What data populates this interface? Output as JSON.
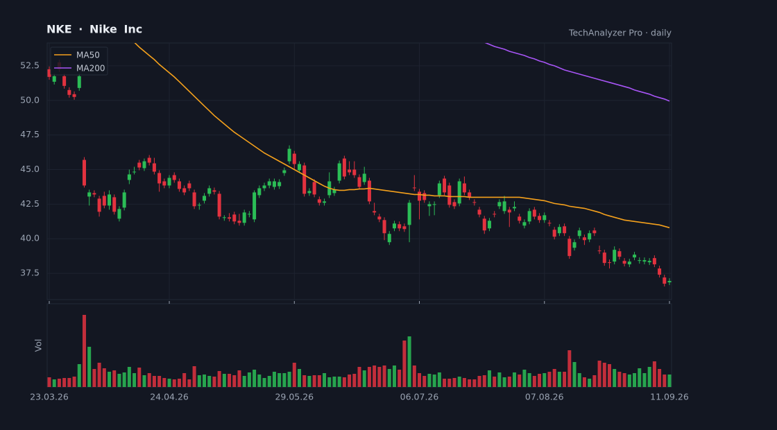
{
  "chart_data": {
    "type": "candlestick",
    "title": "NKE · Nike Inc",
    "subtitle": "TechAnalyzer Pro · daily",
    "volume_label": "Vol",
    "legend": "upper left",
    "grid": true,
    "up_color": "#2bbd56",
    "down_color": "#e2323f",
    "categories": [
      "23.03.26",
      null,
      null,
      null,
      null,
      null,
      null,
      null,
      null,
      null,
      null,
      null,
      null,
      null,
      null,
      null,
      null,
      null,
      null,
      null,
      null,
      null,
      null,
      null,
      "24.04.26",
      null,
      null,
      null,
      null,
      null,
      null,
      null,
      null,
      null,
      null,
      null,
      null,
      null,
      null,
      null,
      null,
      null,
      null,
      null,
      null,
      null,
      null,
      null,
      null,
      "29.05.26",
      null,
      null,
      null,
      null,
      null,
      null,
      null,
      null,
      null,
      null,
      null,
      null,
      null,
      null,
      null,
      null,
      null,
      null,
      null,
      null,
      null,
      null,
      null,
      null,
      "06.07.26",
      null,
      null,
      null,
      null,
      null,
      null,
      null,
      null,
      null,
      null,
      null,
      null,
      null,
      null,
      null,
      null,
      null,
      null,
      null,
      null,
      null,
      null,
      null,
      null,
      "07.08.26",
      null,
      null,
      null,
      null,
      null,
      null,
      null,
      null,
      null,
      null,
      null,
      null,
      null,
      null,
      null,
      null,
      null,
      null,
      null,
      null,
      null,
      null,
      null,
      null,
      "11.09.26"
    ],
    "open": [
      52.25,
      51.35,
      52.75,
      51.75,
      50.75,
      50.45,
      50.9,
      45.7,
      43.05,
      43.3,
      42.9,
      43.1,
      42.4,
      43.0,
      41.45,
      42.25,
      44.25,
      44.8,
      45.5,
      45.1,
      45.85,
      45.45,
      44.75,
      44.15,
      43.85,
      44.6,
      44.15,
      43.65,
      44.0,
      43.35,
      42.4,
      42.75,
      43.25,
      43.5,
      43.25,
      41.5,
      41.55,
      41.75,
      41.3,
      41.15,
      41.75,
      41.4,
      43.15,
      43.65,
      43.85,
      43.75,
      43.8,
      44.75,
      45.6,
      46.15,
      44.95,
      45.3,
      43.3,
      44.1,
      42.85,
      42.6,
      43.15,
      43.3,
      44.2,
      45.8,
      45.0,
      45.0,
      44.45,
      44.1,
      44.2,
      42.0,
      41.6,
      41.35,
      39.75,
      40.75,
      41.05,
      40.9,
      41.0,
      43.7,
      43.4,
      43.3,
      42.35,
      42.45,
      43.15,
      44.35,
      43.85,
      42.65,
      42.55,
      44.0,
      43.35,
      42.65,
      42.1,
      41.45,
      40.75,
      41.8,
      42.35,
      42.0,
      42.1,
      42.2,
      41.6,
      40.95,
      41.25,
      42.1,
      41.65,
      41.35,
      41.15,
      40.65,
      40.4,
      40.9,
      40.0,
      39.35,
      40.2,
      40.1,
      39.95,
      40.6,
      39.15,
      39.0,
      38.3,
      38.35,
      39.1,
      38.4,
      38.15,
      38.65,
      38.4,
      38.35,
      38.3,
      38.6,
      37.85,
      37.2,
      36.85
    ],
    "high": [
      52.45,
      51.95,
      52.95,
      51.95,
      50.95,
      50.65,
      51.95,
      45.9,
      43.55,
      43.5,
      43.1,
      43.4,
      43.5,
      43.2,
      42.35,
      43.55,
      45.0,
      45.2,
      45.7,
      45.8,
      46.05,
      45.85,
      44.95,
      44.35,
      44.6,
      44.8,
      44.35,
      43.85,
      44.2,
      43.55,
      42.6,
      43.3,
      43.85,
      43.7,
      43.45,
      41.7,
      41.85,
      41.95,
      41.8,
      42.1,
      42.0,
      43.5,
      43.85,
      44.05,
      44.35,
      44.35,
      44.3,
      45.15,
      46.75,
      46.35,
      45.6,
      45.5,
      43.65,
      44.3,
      43.05,
      42.9,
      44.8,
      43.75,
      45.65,
      46.0,
      45.6,
      45.6,
      44.65,
      45.2,
      44.4,
      42.6,
      41.8,
      41.55,
      40.55,
      41.3,
      41.25,
      41.1,
      42.8,
      44.6,
      43.6,
      43.5,
      42.7,
      42.7,
      44.2,
      44.55,
      44.05,
      42.85,
      44.35,
      44.5,
      43.55,
      42.85,
      42.3,
      41.65,
      41.5,
      42.0,
      42.85,
      43.1,
      42.3,
      42.7,
      41.8,
      41.4,
      42.2,
      42.3,
      41.85,
      41.9,
      41.35,
      40.85,
      41.05,
      41.1,
      40.2,
      39.95,
      40.8,
      40.3,
      40.6,
      40.8,
      39.5,
      39.2,
      38.5,
      39.45,
      39.3,
      38.6,
      38.55,
      39.05,
      38.65,
      38.65,
      38.6,
      38.8,
      38.05,
      37.4,
      37.15
    ],
    "low": [
      51.5,
      51.15,
      52.05,
      50.85,
      50.2,
      50.05,
      50.7,
      43.7,
      42.4,
      43.0,
      41.6,
      42.2,
      42.1,
      41.75,
      41.25,
      42.05,
      43.95,
      44.65,
      44.95,
      44.9,
      45.3,
      44.65,
      43.4,
      43.65,
      43.65,
      44.05,
      43.4,
      43.15,
      43.45,
      42.15,
      42.1,
      42.55,
      43.05,
      43.2,
      41.4,
      41.3,
      41.25,
      41.05,
      40.95,
      40.95,
      41.55,
      41.2,
      42.95,
      43.45,
      43.65,
      43.55,
      43.6,
      44.55,
      45.4,
      45.0,
      44.75,
      43.05,
      43.1,
      43.0,
      42.4,
      42.4,
      42.95,
      43.1,
      44.0,
      44.3,
      44.6,
      44.4,
      43.55,
      43.9,
      42.5,
      41.7,
      41.2,
      39.9,
      39.55,
      40.55,
      40.55,
      40.5,
      39.75,
      43.45,
      41.4,
      42.6,
      41.65,
      41.7,
      42.95,
      43.15,
      42.25,
      42.15,
      42.35,
      43.15,
      42.8,
      42.4,
      41.55,
      40.35,
      40.55,
      41.55,
      42.15,
      41.8,
      40.85,
      42.0,
      41.1,
      40.75,
      41.05,
      41.4,
      41.15,
      41.15,
      40.9,
      39.95,
      40.2,
      40.2,
      38.55,
      39.15,
      40.0,
      39.55,
      39.75,
      40.2,
      38.9,
      38.05,
      37.85,
      38.15,
      38.5,
      38.0,
      37.95,
      38.45,
      38.2,
      38.15,
      38.1,
      37.95,
      37.2,
      36.55,
      36.65
    ],
    "close": [
      51.7,
      51.75,
      52.25,
      51.05,
      50.4,
      50.25,
      51.75,
      43.85,
      43.35,
      43.2,
      41.95,
      42.4,
      43.2,
      41.95,
      42.15,
      43.35,
      44.65,
      44.85,
      45.15,
      45.6,
      45.5,
      44.85,
      44.0,
      43.85,
      44.4,
      44.25,
      43.6,
      43.35,
      43.65,
      42.35,
      42.45,
      43.1,
      43.65,
      43.4,
      41.6,
      41.55,
      41.45,
      41.25,
      41.15,
      41.9,
      41.8,
      43.35,
      43.65,
      43.85,
      44.15,
      44.15,
      44.1,
      44.95,
      46.5,
      45.4,
      45.4,
      43.25,
      43.45,
      43.2,
      42.6,
      42.7,
      44.15,
      43.55,
      45.45,
      44.5,
      44.8,
      44.6,
      43.75,
      44.7,
      42.7,
      41.9,
      41.4,
      40.4,
      40.35,
      41.1,
      40.75,
      40.7,
      42.6,
      43.65,
      42.75,
      42.8,
      42.5,
      42.5,
      44.0,
      43.35,
      42.45,
      42.35,
      44.15,
      43.35,
      43.0,
      42.6,
      41.75,
      40.6,
      41.3,
      41.75,
      42.65,
      42.7,
      41.9,
      42.3,
      41.3,
      41.2,
      42.0,
      41.6,
      41.35,
      41.7,
      41.1,
      40.15,
      40.85,
      40.4,
      38.75,
      39.75,
      40.6,
      39.9,
      40.4,
      40.4,
      39.1,
      38.25,
      38.25,
      39.2,
      38.7,
      38.2,
      38.35,
      38.85,
      38.45,
      38.45,
      38.4,
      38.15,
      37.4,
      36.75,
      36.95
    ],
    "volume": [
      14,
      11,
      12,
      13,
      13,
      15,
      33,
      104,
      58,
      26,
      35,
      27,
      22,
      24,
      19,
      21,
      29,
      20,
      28,
      17,
      20,
      16,
      16,
      13,
      12,
      11,
      12,
      20,
      11,
      30,
      17,
      18,
      16,
      15,
      23,
      19,
      19,
      17,
      24,
      16,
      21,
      25,
      18,
      13,
      16,
      22,
      20,
      20,
      22,
      35,
      26,
      17,
      16,
      17,
      17,
      20,
      14,
      15,
      15,
      14,
      18,
      19,
      29,
      24,
      29,
      31,
      29,
      31,
      26,
      31,
      25,
      67,
      73,
      31,
      20,
      16,
      19,
      18,
      21,
      12,
      12,
      13,
      15,
      13,
      11,
      11,
      16,
      17,
      24,
      15,
      21,
      14,
      15,
      21,
      18,
      25,
      20,
      16,
      19,
      20,
      22,
      26,
      22,
      22,
      53,
      36,
      20,
      14,
      12,
      17,
      38,
      35,
      33,
      26,
      22,
      20,
      18,
      20,
      27,
      20,
      29,
      37,
      26,
      18,
      18
    ],
    "volume_ylim": [
      0,
      120
    ],
    "series": [
      {
        "name": "MA50",
        "color": "#f5a11c",
        "values": [
          null,
          null,
          null,
          null,
          null,
          null,
          null,
          null,
          null,
          null,
          null,
          null,
          null,
          null,
          null,
          null,
          null,
          54.2,
          53.85,
          53.55,
          53.25,
          52.95,
          52.6,
          52.3,
          52.0,
          51.7,
          51.35,
          51.0,
          50.65,
          50.3,
          49.95,
          49.6,
          49.25,
          48.9,
          48.6,
          48.3,
          48.0,
          47.7,
          47.45,
          47.2,
          46.95,
          46.7,
          46.45,
          46.2,
          46.0,
          45.8,
          45.6,
          45.4,
          45.2,
          45.0,
          44.8,
          44.6,
          44.4,
          44.2,
          44.0,
          43.8,
          43.65,
          43.55,
          43.5,
          43.5,
          43.55,
          43.55,
          43.6,
          43.6,
          43.65,
          43.6,
          43.55,
          43.5,
          43.45,
          43.4,
          43.35,
          43.3,
          43.25,
          43.2,
          43.2,
          43.15,
          43.15,
          43.1,
          43.1,
          43.1,
          43.05,
          43.05,
          43.05,
          43.05,
          43.0,
          43.0,
          43.0,
          43.0,
          43.0,
          43.0,
          43.0,
          43.0,
          43.0,
          43.0,
          43.0,
          42.95,
          42.9,
          42.85,
          42.8,
          42.75,
          42.65,
          42.55,
          42.5,
          42.45,
          42.35,
          42.3,
          42.25,
          42.2,
          42.1,
          42.0,
          41.9,
          41.75,
          41.65,
          41.55,
          41.45,
          41.35,
          41.3,
          41.25,
          41.2,
          41.15,
          41.1,
          41.05,
          41.0,
          40.9,
          40.8
        ]
      },
      {
        "name": "MA200",
        "color": "#a855f7",
        "values": [
          null,
          null,
          null,
          null,
          null,
          null,
          null,
          null,
          null,
          null,
          null,
          null,
          null,
          null,
          null,
          null,
          null,
          null,
          null,
          null,
          null,
          null,
          null,
          null,
          null,
          null,
          null,
          null,
          null,
          null,
          null,
          null,
          null,
          null,
          null,
          null,
          null,
          null,
          null,
          null,
          null,
          null,
          null,
          null,
          null,
          null,
          null,
          null,
          null,
          null,
          null,
          null,
          null,
          null,
          null,
          null,
          null,
          null,
          null,
          null,
          null,
          null,
          null,
          null,
          null,
          null,
          null,
          null,
          null,
          null,
          null,
          null,
          null,
          null,
          null,
          null,
          null,
          null,
          null,
          null,
          null,
          null,
          null,
          null,
          null,
          null,
          null,
          54.2,
          54.05,
          53.9,
          53.8,
          53.7,
          53.55,
          53.45,
          53.35,
          53.25,
          53.1,
          53.0,
          52.85,
          52.75,
          52.6,
          52.5,
          52.35,
          52.2,
          52.1,
          52.0,
          51.9,
          51.8,
          51.7,
          51.6,
          51.5,
          51.4,
          51.3,
          51.2,
          51.1,
          51.0,
          50.9,
          50.75,
          50.65,
          50.55,
          50.45,
          50.3,
          50.2,
          50.1,
          49.95
        ]
      }
    ],
    "ylim": [
      35.6,
      54.15
    ],
    "yticks": [
      37.5,
      {
        "value": 40,
        "label": "40.0"
      },
      42.5,
      {
        "value": 45,
        "label": "45.0"
      },
      47.5,
      {
        "value": 50,
        "label": "50.0"
      },
      52.5
    ]
  }
}
